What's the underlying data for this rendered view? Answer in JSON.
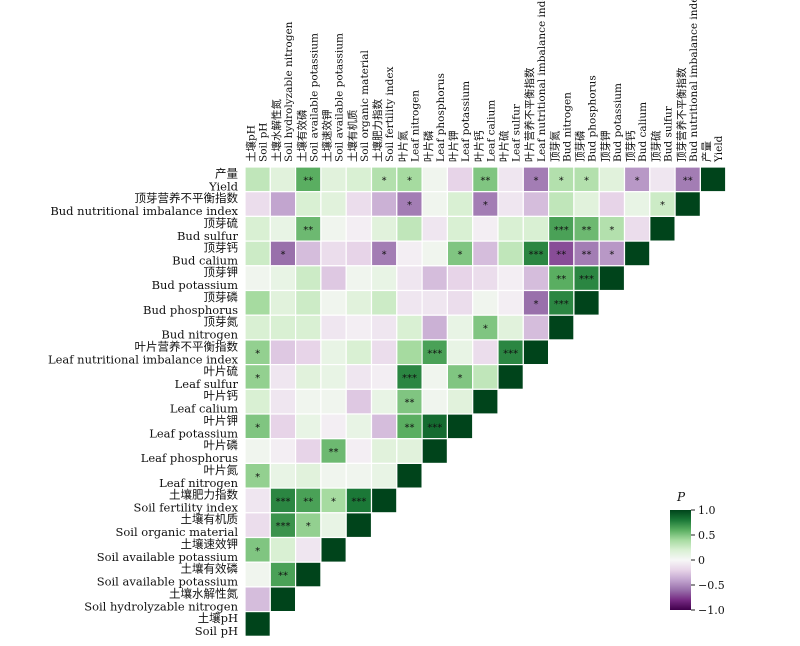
{
  "chart_data": {
    "type": "heatmap",
    "title": "",
    "colorbar": {
      "label": "P",
      "range": [
        -1.0,
        1.0
      ],
      "ticks": [
        "1.0",
        "0.5",
        "0",
        "−0.5",
        "−1.0"
      ],
      "tick_values": [
        1.0,
        0.5,
        0,
        -0.5,
        -1.0
      ],
      "colors": [
        "#40004b",
        "#762a83",
        "#9970ab",
        "#c2a5cf",
        "#e7d4e8",
        "#f7f7f7",
        "#d9f0d3",
        "#a6dba0",
        "#5aae61",
        "#1b7837",
        "#00441b"
      ]
    },
    "variables": [
      {
        "cn": "产量",
        "en": "Yield"
      },
      {
        "cn": "顶芽营养不平衡指数",
        "en": "Bud nutritional imbalance index"
      },
      {
        "cn": "顶芽硫",
        "en": "Bud sulfur"
      },
      {
        "cn": "顶芽钙",
        "en": "Bud calium"
      },
      {
        "cn": "顶芽钾",
        "en": "Bud potassium"
      },
      {
        "cn": "顶芽磷",
        "en": "Bud phosphorus"
      },
      {
        "cn": "顶芽氮",
        "en": "Bud nitrogen"
      },
      {
        "cn": "叶片营养不平衡指数",
        "en": "Leaf nutritional imbalance index"
      },
      {
        "cn": "叶片硫",
        "en": "Leaf sulfur"
      },
      {
        "cn": "叶片钙",
        "en": "Leaf calium"
      },
      {
        "cn": "叶片钾",
        "en": "Leaf potassium"
      },
      {
        "cn": "叶片磷",
        "en": "Leaf phosphorus"
      },
      {
        "cn": "叶片氮",
        "en": "Leaf nitrogen"
      },
      {
        "cn": "土壤肥力指数",
        "en": "Soil fertility index"
      },
      {
        "cn": "土壤有机质",
        "en": "Soil organic material"
      },
      {
        "cn": "土壤速效钾",
        "en": "Soil available potassium"
      },
      {
        "cn": "土壤有效磷",
        "en": "Soil available potassium"
      },
      {
        "cn": "土壤水解性氮",
        "en": "Soil hydrolyzable nitrogen"
      },
      {
        "cn": "土壤pH",
        "en": "Soil pH"
      }
    ],
    "column_order": [
      {
        "cn": "土壤pH",
        "en": "Soil pH"
      },
      {
        "cn": "土壤水解性氮",
        "en": "Soil hydrolyzable nitrogen"
      },
      {
        "cn": "土壤有效磷",
        "en": "Soil available potassium"
      },
      {
        "cn": "土壤速效钾",
        "en": "Soil available potassium"
      },
      {
        "cn": "土壤有机质",
        "en": "Soil organic material"
      },
      {
        "cn": "土壤肥力指数",
        "en": "Soil fertility index"
      },
      {
        "cn": "叶片氮",
        "en": "Leaf nitrogen"
      },
      {
        "cn": "叶片磷",
        "en": "Leaf phosphorus"
      },
      {
        "cn": "叶片钾",
        "en": "Leaf potassium"
      },
      {
        "cn": "叶片钙",
        "en": "Leaf calium"
      },
      {
        "cn": "叶片硫",
        "en": "Leaf sulfur"
      },
      {
        "cn": "叶片营养不平衡指数",
        "en": "Leaf nutritional imbalance index"
      },
      {
        "cn": "顶芽氮",
        "en": "Bud nitrogen"
      },
      {
        "cn": "顶芽磷",
        "en": "Bud phosphorus"
      },
      {
        "cn": "顶芽钾",
        "en": "Bud potassium"
      },
      {
        "cn": "顶芽钙",
        "en": "Bud calium"
      },
      {
        "cn": "顶芽硫",
        "en": "Bud sulfur"
      },
      {
        "cn": "顶芽营养不平衡指数",
        "en": "Bud nutritional imbalance index"
      },
      {
        "cn": "产量",
        "en": "Yield"
      }
    ],
    "values": [
      [
        0.3,
        0.15,
        0.6,
        0.15,
        0.2,
        0.35,
        0.4,
        0.05,
        -0.2,
        0.5,
        -0.1,
        -0.55,
        0.35,
        0.35,
        0.15,
        -0.45,
        -0.1,
        -0.55,
        1
      ],
      [
        -0.15,
        -0.4,
        0.2,
        0.15,
        -0.15,
        -0.35,
        -0.55,
        0.05,
        0.2,
        -0.55,
        -0.1,
        -0.3,
        0.3,
        0.15,
        -0.2,
        0.1,
        0.25,
        1
      ],
      [
        0.2,
        0.1,
        0.55,
        0.05,
        -0.05,
        0.15,
        0.3,
        -0.1,
        0.2,
        -0.05,
        0.2,
        0.2,
        0.65,
        0.55,
        0.35,
        -0.15,
        1
      ],
      [
        0.25,
        -0.6,
        -0.3,
        -0.15,
        -0.2,
        -0.55,
        -0.05,
        0.05,
        0.5,
        -0.3,
        0.3,
        0.75,
        -0.7,
        -0.55,
        -0.45,
        1
      ],
      [
        0.05,
        0.1,
        0.25,
        -0.25,
        0.05,
        0.1,
        -0.1,
        -0.3,
        -0.2,
        -0.15,
        -0.05,
        -0.3,
        0.6,
        0.75,
        1
      ],
      [
        0.4,
        0.15,
        0.25,
        0.05,
        0.15,
        0.25,
        -0.1,
        -0.1,
        -0.15,
        0.05,
        -0.05,
        -0.6,
        0.75,
        1
      ],
      [
        0.2,
        0.2,
        0.2,
        -0.1,
        -0.05,
        -0.1,
        0.2,
        -0.35,
        0.1,
        0.5,
        0.15,
        -0.3,
        1
      ],
      [
        0.45,
        -0.25,
        -0.2,
        0.1,
        0.2,
        -0.15,
        0.4,
        0.65,
        0.1,
        -0.15,
        0.75,
        1
      ],
      [
        0.45,
        -0.1,
        0.15,
        0.1,
        -0.1,
        -0.05,
        0.75,
        0.05,
        0.5,
        0.3,
        1
      ],
      [
        0.2,
        -0.1,
        0.05,
        0.05,
        -0.25,
        0.1,
        0.5,
        0.05,
        0.15,
        1
      ],
      [
        0.5,
        -0.2,
        0.1,
        -0.05,
        0.1,
        -0.3,
        0.6,
        0.85,
        1
      ],
      [
        0.05,
        -0.05,
        -0.2,
        0.55,
        -0.05,
        0.15,
        0.15,
        1
      ],
      [
        0.45,
        0.1,
        0.15,
        0.05,
        0.05,
        0.1,
        1
      ],
      [
        -0.1,
        0.75,
        0.65,
        0.4,
        0.8,
        1
      ],
      [
        -0.15,
        0.7,
        0.45,
        0.1,
        1
      ],
      [
        0.5,
        0.2,
        -0.1,
        1
      ],
      [
        0.05,
        0.65,
        1
      ],
      [
        -0.3,
        1
      ],
      [
        1
      ]
    ],
    "significance": [
      [
        "",
        "",
        "**",
        "",
        "",
        "*",
        "*",
        "",
        "",
        "**",
        "",
        "*",
        "*",
        "*",
        "",
        "*",
        "",
        "**",
        ""
      ],
      [
        "",
        "",
        "",
        "",
        "",
        "",
        "*",
        "",
        "",
        "*",
        "",
        "",
        "",
        "",
        "",
        "",
        "*",
        ""
      ],
      [
        "",
        "",
        "**",
        "",
        "",
        "",
        "",
        "",
        "",
        "",
        "",
        "",
        "***",
        "**",
        "*",
        "",
        ""
      ],
      [
        "",
        "*",
        "",
        "",
        "",
        "*",
        "",
        "",
        "*",
        "",
        "",
        "***",
        "**",
        "**",
        "*",
        ""
      ],
      [
        "",
        "",
        "",
        "",
        "",
        "",
        "",
        "",
        "",
        "",
        "",
        "",
        "**",
        "***",
        ""
      ],
      [
        "",
        "",
        "",
        "",
        "",
        "",
        "",
        "",
        "",
        "",
        "",
        "*",
        "***",
        ""
      ],
      [
        "",
        "",
        "",
        "",
        "",
        "",
        "",
        "",
        "",
        "*",
        "",
        "",
        ""
      ],
      [
        "*",
        "",
        "",
        "",
        "",
        "",
        "",
        "***",
        "",
        "",
        "***",
        ""
      ],
      [
        "*",
        "",
        "",
        "",
        "",
        "",
        "***",
        "",
        "*",
        "",
        ""
      ],
      [
        "",
        "",
        "",
        "",
        "",
        "",
        "**",
        "",
        "",
        ""
      ],
      [
        "*",
        "",
        "",
        "",
        "",
        "",
        "**",
        "***",
        ""
      ],
      [
        "",
        "",
        "",
        "**",
        "",
        "",
        "",
        ""
      ],
      [
        "*",
        "",
        "",
        "",
        "",
        "",
        ""
      ],
      [
        "",
        "***",
        "**",
        "*",
        "***",
        ""
      ],
      [
        "",
        "***",
        "*",
        "",
        ""
      ],
      [
        "*",
        "",
        "",
        ""
      ],
      [
        "",
        "**",
        ""
      ],
      [
        "",
        ""
      ],
      [
        ""
      ]
    ]
  }
}
